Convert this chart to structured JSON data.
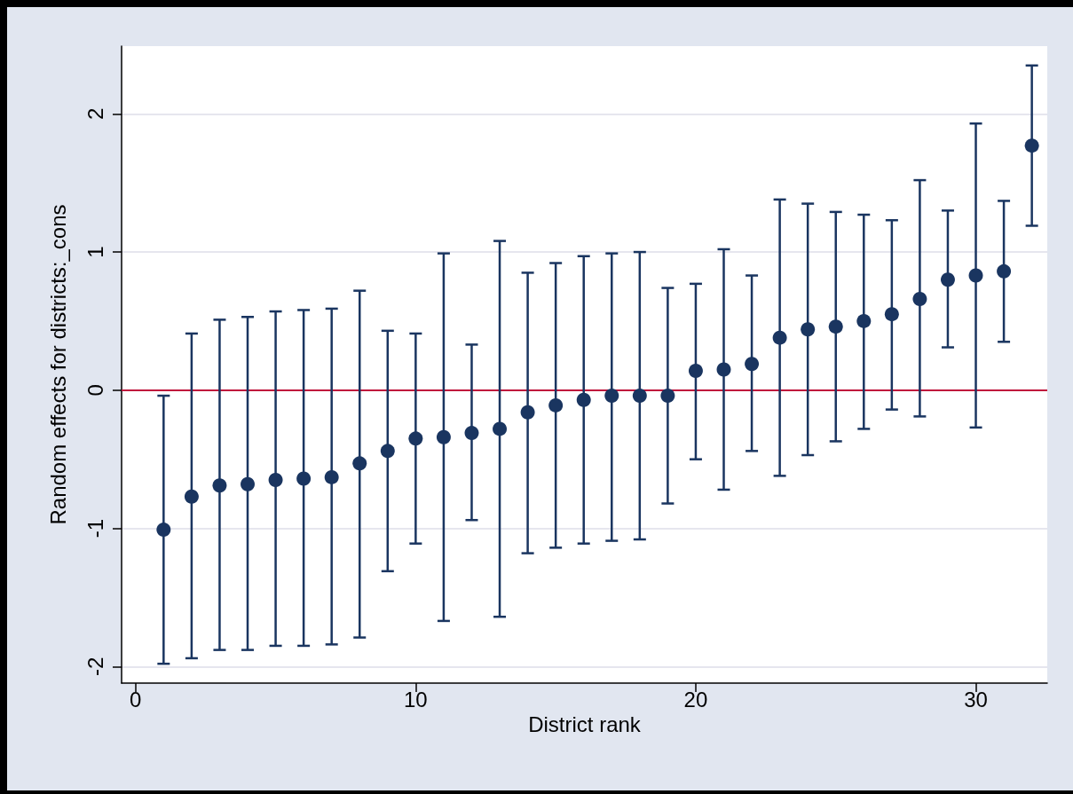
{
  "chart_data": {
    "type": "scatter",
    "xlabel": "District rank",
    "ylabel": "Random effects for districts:_cons",
    "x": [
      1,
      2,
      3,
      4,
      5,
      6,
      7,
      8,
      9,
      10,
      11,
      12,
      13,
      14,
      15,
      16,
      17,
      18,
      19,
      20,
      21,
      22,
      23,
      24,
      25,
      26,
      27,
      28,
      29,
      30,
      31,
      32
    ],
    "series": [
      {
        "color": "#1a3560",
        "values": [
          -1.01,
          -0.77,
          -0.69,
          -0.68,
          -0.65,
          -0.64,
          -0.63,
          -0.53,
          -0.44,
          -0.35,
          -0.34,
          -0.31,
          -0.28,
          -0.16,
          -0.11,
          -0.07,
          -0.04,
          -0.04,
          -0.04,
          0.14,
          0.15,
          0.19,
          0.38,
          0.44,
          0.46,
          0.5,
          0.55,
          0.66,
          0.8,
          0.83,
          0.86,
          1.77
        ],
        "errors": [
          [
            -1.98,
            -0.04
          ],
          [
            -1.94,
            0.41
          ],
          [
            -1.88,
            0.51
          ],
          [
            -1.88,
            0.53
          ],
          [
            -1.85,
            0.57
          ],
          [
            -1.85,
            0.58
          ],
          [
            -1.84,
            0.59
          ],
          [
            -1.79,
            0.72
          ],
          [
            -1.31,
            0.43
          ],
          [
            -1.11,
            0.41
          ],
          [
            -1.67,
            0.99
          ],
          [
            -0.94,
            0.33
          ],
          [
            -1.64,
            1.08
          ],
          [
            -1.18,
            0.85
          ],
          [
            -1.14,
            0.92
          ],
          [
            -1.11,
            0.97
          ],
          [
            -1.09,
            0.99
          ],
          [
            -1.08,
            1.0
          ],
          [
            -0.82,
            0.74
          ],
          [
            -0.5,
            0.77
          ],
          [
            -0.72,
            1.02
          ],
          [
            -0.44,
            0.83
          ],
          [
            -0.62,
            1.38
          ],
          [
            -0.47,
            1.35
          ],
          [
            -0.37,
            1.29
          ],
          [
            -0.28,
            1.27
          ],
          [
            -0.14,
            1.23
          ],
          [
            -0.19,
            1.52
          ],
          [
            0.31,
            1.3
          ],
          [
            -0.27,
            1.93
          ],
          [
            0.35,
            1.37
          ],
          [
            1.19,
            2.35
          ]
        ]
      }
    ],
    "xlim": [
      -0.5,
      32.55
    ],
    "xticks": [
      0,
      10,
      20,
      30
    ],
    "ylim": [
      -2.12,
      2.49
    ],
    "yticks": [
      -2,
      -1,
      0,
      1,
      2
    ],
    "ref_lines": [
      {
        "axis": "y",
        "value": 0,
        "color": "#c0143c"
      }
    ],
    "grid": "y",
    "marker": "circle",
    "legend": false
  }
}
